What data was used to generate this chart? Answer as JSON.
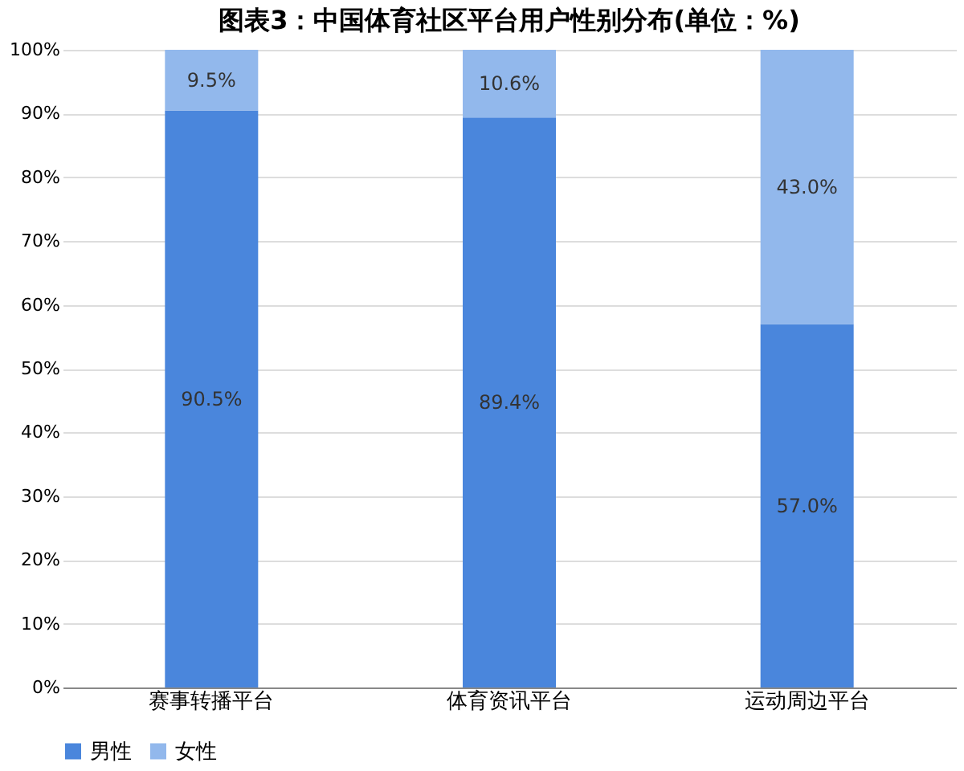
{
  "chart_data": {
    "type": "bar",
    "title": "图表3：中国体育社区平台用户性别分布(单位：%)",
    "categories": [
      "赛事转播平台",
      "体育资讯平台",
      "运动周边平台"
    ],
    "series": [
      {
        "name": "男性",
        "color": "#4a86dc",
        "values": [
          90.5,
          89.4,
          57.0
        ],
        "value_labels": [
          "90.5%",
          "89.4%",
          "57.0%"
        ]
      },
      {
        "name": "女性",
        "color": "#92b8ec",
        "values": [
          9.5,
          10.6,
          43.0
        ],
        "value_labels": [
          "9.5%",
          "10.6%",
          "43.0%"
        ]
      }
    ],
    "stacked": true,
    "ylim": [
      0,
      100
    ],
    "yticks": [
      {
        "value": 0,
        "label": "0%"
      },
      {
        "value": 10,
        "label": "10%"
      },
      {
        "value": 20,
        "label": "20%"
      },
      {
        "value": 30,
        "label": "30%"
      },
      {
        "value": 40,
        "label": "40%"
      },
      {
        "value": 50,
        "label": "50%"
      },
      {
        "value": 60,
        "label": "60%"
      },
      {
        "value": 70,
        "label": "70%"
      },
      {
        "value": 80,
        "label": "80%"
      },
      {
        "value": 90,
        "label": "90%"
      },
      {
        "value": 100,
        "label": "100%"
      }
    ],
    "grid": "y",
    "legend": "bottom"
  }
}
